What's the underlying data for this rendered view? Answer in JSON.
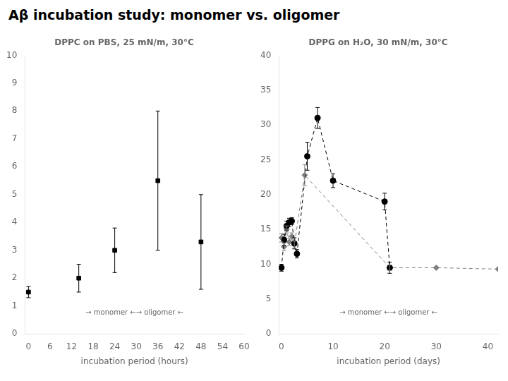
{
  "title": "Aβ incubation study: monomer vs. oligomer",
  "chart_data": [
    {
      "type": "scatter",
      "title": "DPPC on PBS, 25 mN/m, 30°C",
      "xlabel": "incubation period (hours)",
      "xlim": [
        -1,
        60
      ],
      "ylim": [
        0,
        10
      ],
      "xticks": [
        0,
        6,
        12,
        18,
        24,
        30,
        36,
        42,
        48,
        54,
        60
      ],
      "yticks": [
        0,
        1,
        2,
        3,
        4,
        5,
        6,
        7,
        8,
        9,
        10
      ],
      "grid": false,
      "annotations": [
        "→ monomer ←→ oligomer ←"
      ],
      "series": [
        {
          "x": [
            0,
            14,
            24,
            36,
            48
          ],
          "values": [
            1.5,
            2.0,
            3.0,
            5.5,
            3.3
          ],
          "errors": [
            0.2,
            0.5,
            0.8,
            2.5,
            1.7
          ],
          "color": "#000000",
          "marker": "square",
          "line_style": "none"
        }
      ]
    },
    {
      "type": "scatter",
      "title": "DPPG on H₂O, 30 mN/m, 30°C",
      "xlabel": "incubation period (days)",
      "xlim": [
        -0.5,
        42
      ],
      "ylim": [
        0,
        40
      ],
      "xticks": [
        0,
        10,
        20,
        30,
        40
      ],
      "yticks": [
        0,
        5,
        10,
        15,
        20,
        25,
        30,
        35,
        40
      ],
      "grid": false,
      "annotations": [
        "→ monomer ←→ oligomer ←"
      ],
      "series": [
        {
          "x": [
            0.0,
            0.5,
            1.0,
            1.5,
            2.0,
            2.5,
            3.0,
            5.0,
            7.0,
            10.0,
            20.0,
            21.0
          ],
          "values": [
            9.5,
            13.5,
            15.5,
            16.0,
            16.2,
            13.0,
            11.5,
            25.5,
            31.0,
            22.0,
            19.0,
            9.5
          ],
          "errors": [
            0.5,
            0.8,
            0.7,
            0.6,
            0.5,
            0.8,
            0.6,
            2.0,
            1.5,
            1.0,
            1.2,
            0.8
          ],
          "color": "#000000",
          "marker": "circle",
          "line_style": "dashed"
        },
        {
          "x": [
            0.0,
            0.5,
            1.0,
            1.5,
            2.0,
            2.5,
            4.5,
            21.0,
            30.0,
            42.0
          ],
          "values": [
            13.8,
            12.5,
            15.0,
            13.2,
            14.0,
            12.8,
            22.8,
            9.5,
            9.5,
            9.3
          ],
          "errors": [
            0.6,
            0.5,
            0.5,
            0.5,
            0.5,
            0.5,
            1.5,
            0.4,
            0.0,
            0.0
          ],
          "color": "#808080",
          "marker": "diamond",
          "line_style": "dashed"
        }
      ]
    }
  ]
}
